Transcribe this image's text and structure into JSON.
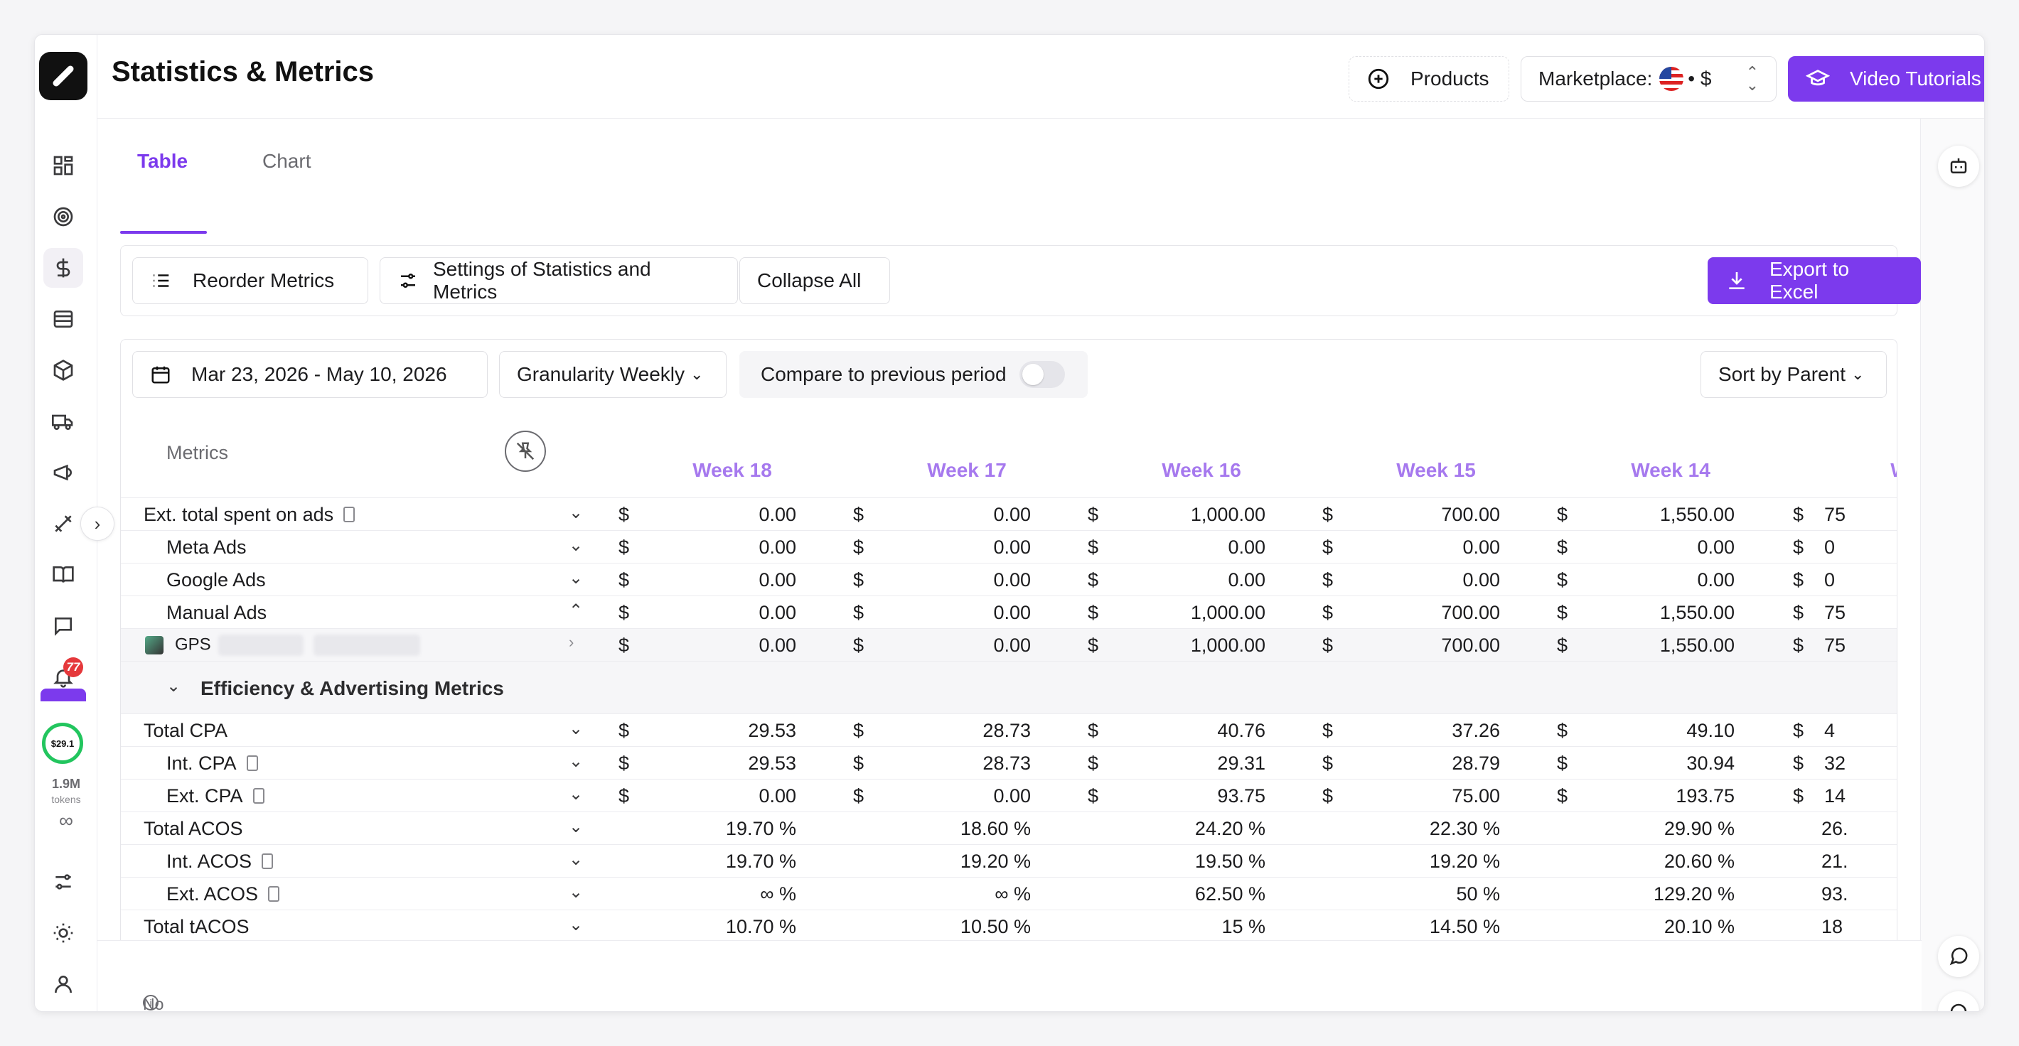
{
  "app": {
    "title": "Statistics & Metrics"
  },
  "header": {
    "products_label": "Products",
    "marketplace_label": "Marketplace:",
    "marketplace_currency": "• $",
    "tutorials_label": "Video Tutorials"
  },
  "tabs": [
    {
      "label": "Table"
    },
    {
      "label": "Chart"
    }
  ],
  "toolbar": {
    "reorder": "Reorder Metrics",
    "settings": "Settings of Statistics and Metrics",
    "collapse": "Collapse All",
    "export": "Export to Excel"
  },
  "filters": {
    "date_range": "Mar 23, 2026 - May 10, 2026",
    "granularity": "Granularity Weekly",
    "compare": "Compare to previous period",
    "sort": "Sort by Parent"
  },
  "table": {
    "metrics_header": "Metrics",
    "weeks": [
      "Week 18",
      "Week 17",
      "Week 16",
      "Week 15",
      "Week 14",
      "We"
    ],
    "rows": [
      {
        "name": "Ext. total spent on ads",
        "cur": "$",
        "values": [
          "0.00",
          "0.00",
          "1,000.00",
          "700.00",
          "1,550.00",
          "75"
        ]
      },
      {
        "name": "Meta Ads",
        "cur": "$",
        "values": [
          "0.00",
          "0.00",
          "0.00",
          "0.00",
          "0.00",
          "0"
        ]
      },
      {
        "name": "Google Ads",
        "cur": "$",
        "values": [
          "0.00",
          "0.00",
          "0.00",
          "0.00",
          "0.00",
          "0"
        ]
      },
      {
        "name": "Manual Ads",
        "cur": "$",
        "values": [
          "0.00",
          "0.00",
          "1,000.00",
          "700.00",
          "1,550.00",
          "75"
        ]
      },
      {
        "name": "GPS",
        "cur": "$",
        "values": [
          "0.00",
          "0.00",
          "1,000.00",
          "700.00",
          "1,550.00",
          "75"
        ]
      },
      {
        "name": "Total CPA",
        "cur": "$",
        "values": [
          "29.53",
          "28.73",
          "40.76",
          "37.26",
          "49.10",
          "4"
        ]
      },
      {
        "name": "Int. CPA",
        "cur": "$",
        "values": [
          "29.53",
          "28.73",
          "29.31",
          "28.79",
          "30.94",
          "32"
        ]
      },
      {
        "name": "Ext. CPA",
        "cur": "$",
        "values": [
          "0.00",
          "0.00",
          "93.75",
          "75.00",
          "193.75",
          "14"
        ]
      },
      {
        "name": "Total ACOS",
        "cur": "",
        "values": [
          "19.70 %",
          "18.60 %",
          "24.20 %",
          "22.30 %",
          "29.90 %",
          "26."
        ]
      },
      {
        "name": "Int. ACOS",
        "cur": "",
        "values": [
          "19.70 %",
          "19.20 %",
          "19.50 %",
          "19.20 %",
          "20.60 %",
          "21."
        ]
      },
      {
        "name": "Ext. ACOS",
        "cur": "",
        "values": [
          "∞ %",
          "∞ %",
          "62.50 %",
          "50 %",
          "129.20 %",
          "93."
        ]
      },
      {
        "name": "Total tACOS",
        "cur": "",
        "values": [
          "10.70 %",
          "10.50 %",
          "15 %",
          "14.50 %",
          "20.10 %",
          "18"
        ]
      }
    ],
    "section": "Efficiency & Advertising Metrics"
  },
  "sidebar": {
    "notifications_badge": "77",
    "credit": "$29.1",
    "tokens_value": "1.9M",
    "tokens_label": "tokens",
    "infinity": "∞"
  },
  "footer": {
    "status": "No selection"
  },
  "colors": {
    "accent": "#7c3aed",
    "week_header": "#a679ee"
  }
}
